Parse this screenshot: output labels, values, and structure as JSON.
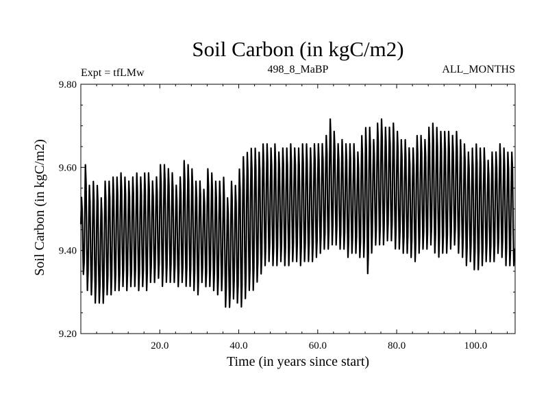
{
  "chart_data": {
    "type": "line",
    "title": "Soil Carbon (in kgC/m2)",
    "subtitle_left": "Expt = tfLMw",
    "subtitle_center": "498_8_MaBP",
    "subtitle_right": "ALL_MONTHS",
    "xlabel": "Time (in years since start)",
    "ylabel": "Soil Carbon (in kgC/m2)",
    "xlim": [
      0,
      110
    ],
    "ylim": [
      9.2,
      9.8
    ],
    "x_ticks": [
      "20.0",
      "40.0",
      "60.0",
      "80.0",
      "100.0"
    ],
    "y_ticks": [
      "9.20",
      "9.40",
      "9.60",
      "9.80"
    ],
    "series": [
      {
        "values_note_free": true,
        "x_years": [
          0,
          1,
          2,
          3,
          4,
          5,
          6,
          7,
          8,
          9,
          10,
          11,
          12,
          13,
          14,
          15,
          16,
          17,
          18,
          19,
          20,
          21,
          22,
          23,
          24,
          25,
          26,
          27,
          28,
          29,
          30,
          31,
          32,
          33,
          34,
          35,
          36,
          37,
          38,
          39,
          40,
          41,
          42,
          43,
          44,
          45,
          46,
          47,
          48,
          49,
          50,
          51,
          52,
          53,
          54,
          55,
          56,
          57,
          58,
          59,
          60,
          61,
          62,
          63,
          64,
          65,
          66,
          67,
          68,
          69,
          70,
          71,
          72,
          73,
          74,
          75,
          76,
          77,
          78,
          79,
          80,
          81,
          82,
          83,
          84,
          85,
          86,
          87,
          88,
          89,
          90,
          91,
          92,
          93,
          94,
          95,
          96,
          97,
          98,
          99,
          100,
          101,
          102,
          103,
          104,
          105,
          106,
          107,
          108,
          109
        ],
        "annual_max": [
          9.53,
          9.61,
          9.56,
          9.57,
          9.56,
          9.53,
          9.57,
          9.57,
          9.58,
          9.58,
          9.59,
          9.58,
          9.57,
          9.58,
          9.59,
          9.58,
          9.59,
          9.59,
          9.57,
          9.58,
          9.61,
          9.61,
          9.6,
          9.59,
          9.56,
          9.58,
          9.62,
          9.61,
          9.6,
          9.57,
          9.57,
          9.55,
          9.6,
          9.59,
          9.57,
          9.57,
          9.58,
          9.53,
          9.57,
          9.56,
          9.6,
          9.63,
          9.64,
          9.65,
          9.65,
          9.64,
          9.66,
          9.66,
          9.65,
          9.66,
          9.64,
          9.65,
          9.65,
          9.66,
          9.65,
          9.65,
          9.66,
          9.66,
          9.65,
          9.66,
          9.66,
          9.66,
          9.68,
          9.72,
          9.69,
          9.66,
          9.67,
          9.66,
          9.66,
          9.66,
          9.64,
          9.68,
          9.7,
          9.7,
          9.67,
          9.71,
          9.72,
          9.7,
          9.7,
          9.71,
          9.69,
          9.67,
          9.67,
          9.65,
          9.65,
          9.68,
          9.68,
          9.67,
          9.7,
          9.71,
          9.7,
          9.69,
          9.69,
          9.69,
          9.68,
          9.69,
          9.67,
          9.66,
          9.64,
          9.65,
          9.66,
          9.65,
          9.65,
          9.62,
          9.64,
          9.64,
          9.66,
          9.65,
          9.64,
          9.64
        ],
        "annual_min": [
          9.34,
          9.3,
          9.29,
          9.27,
          9.27,
          9.27,
          9.29,
          9.29,
          9.3,
          9.3,
          9.31,
          9.3,
          9.31,
          9.31,
          9.3,
          9.31,
          9.3,
          9.32,
          9.32,
          9.33,
          9.31,
          9.32,
          9.32,
          9.32,
          9.31,
          9.32,
          9.31,
          9.31,
          9.3,
          9.29,
          9.32,
          9.31,
          9.31,
          9.3,
          9.29,
          9.3,
          9.26,
          9.26,
          9.28,
          9.27,
          9.26,
          9.28,
          9.3,
          9.3,
          9.32,
          9.34,
          9.36,
          9.37,
          9.36,
          9.36,
          9.37,
          9.36,
          9.36,
          9.37,
          9.37,
          9.36,
          9.37,
          9.37,
          9.37,
          9.38,
          9.39,
          9.4,
          9.4,
          9.41,
          9.41,
          9.4,
          9.4,
          9.38,
          9.39,
          9.39,
          9.38,
          9.38,
          9.34,
          9.39,
          9.41,
          9.41,
          9.41,
          9.42,
          9.42,
          9.4,
          9.4,
          9.39,
          9.39,
          9.38,
          9.37,
          9.39,
          9.4,
          9.4,
          9.41,
          9.39,
          9.38,
          9.39,
          9.39,
          9.4,
          9.41,
          9.39,
          9.38,
          9.36,
          9.37,
          9.35,
          9.35,
          9.36,
          9.37,
          9.37,
          9.37,
          9.39,
          9.38,
          9.36,
          9.36,
          9.36
        ]
      }
    ],
    "grid": false,
    "line_color": "#000000"
  }
}
